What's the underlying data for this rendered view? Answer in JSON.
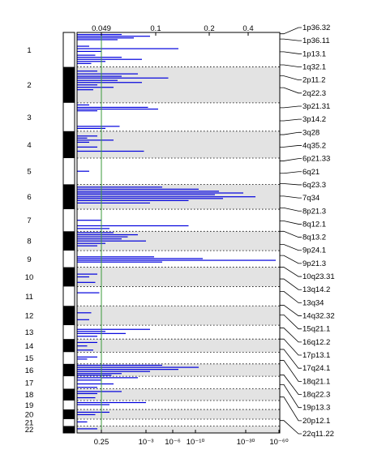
{
  "chart_data": {
    "type": "bar",
    "orientation": "horizontal",
    "chromosomes": [
      "1",
      "2",
      "3",
      "4",
      "5",
      "6",
      "7",
      "8",
      "9",
      "10",
      "11",
      "12",
      "13",
      "14",
      "15",
      "16",
      "17",
      "18",
      "19",
      "20",
      "21",
      "22"
    ],
    "chromosome_spans": [
      {
        "chr": "1",
        "start": 0.0,
        "end": 5.0
      },
      {
        "chr": "2",
        "start": 5.0,
        "end": 10.2
      },
      {
        "chr": "3",
        "start": 10.2,
        "end": 14.3
      },
      {
        "chr": "4",
        "start": 14.3,
        "end": 18.2
      },
      {
        "chr": "5",
        "start": 18.2,
        "end": 22.0
      },
      {
        "chr": "6",
        "start": 22.0,
        "end": 25.6
      },
      {
        "chr": "7",
        "start": 25.6,
        "end": 28.8
      },
      {
        "chr": "8",
        "start": 28.8,
        "end": 31.6
      },
      {
        "chr": "9",
        "start": 31.6,
        "end": 34.0
      },
      {
        "chr": "10",
        "start": 34.0,
        "end": 36.8
      },
      {
        "chr": "11",
        "start": 36.8,
        "end": 39.6
      },
      {
        "chr": "12",
        "start": 39.6,
        "end": 42.4
      },
      {
        "chr": "13",
        "start": 42.4,
        "end": 44.4
      },
      {
        "chr": "14",
        "start": 44.4,
        "end": 46.3
      },
      {
        "chr": "15",
        "start": 46.3,
        "end": 48.0
      },
      {
        "chr": "16",
        "start": 48.0,
        "end": 49.8
      },
      {
        "chr": "17",
        "start": 49.8,
        "end": 51.6
      },
      {
        "chr": "18",
        "start": 51.6,
        "end": 53.3
      },
      {
        "chr": "19",
        "start": 53.3,
        "end": 54.6
      },
      {
        "chr": "20",
        "start": 54.6,
        "end": 56.0
      },
      {
        "chr": "21",
        "start": 56.0,
        "end": 57.0
      },
      {
        "chr": "22",
        "start": 57.0,
        "end": 58.0
      }
    ],
    "top_axis_ticks": [
      "0.049",
      "0.1",
      "0.2",
      "0.4"
    ],
    "bottom_axis_ticks": [
      "0.25",
      "10⁻³",
      "10⁻⁶",
      "10⁻¹⁰",
      "10⁻³⁰",
      "10⁻⁶⁰"
    ],
    "threshold": 0.25,
    "threshold_color": "#3a9a3a",
    "bar_color": "#0000dd",
    "band_color": "#e3e3e3",
    "region_labels": [
      "1p36.32",
      "1p36.11",
      "1p13.1",
      "1q32.1",
      "2p11.2",
      "2q22.3",
      "3p21.31",
      "3p14.2",
      "3q28",
      "4q35.2",
      "6p21.33",
      "6q21",
      "6q23.3",
      "7q34",
      "8p21.3",
      "8q12.1",
      "8q13.2",
      "9p24.1",
      "9p21.3",
      "10q23.31",
      "13q14.2",
      "13q34",
      "14q32.32",
      "15q21.1",
      "16q12.2",
      "17p13.1",
      "17q24.1",
      "18q21.1",
      "18q22.3",
      "19p13.3",
      "20p12.1",
      "22q11.22"
    ],
    "label_anchors": [
      0.2,
      0.95,
      2.8,
      4.7,
      6.3,
      8.0,
      10.9,
      12.8,
      14.8,
      16.6,
      18.6,
      20.4,
      21.9,
      23.7,
      25.4,
      27.3,
      28.8,
      30.7,
      32.3,
      34.0,
      35.7,
      37.5,
      39.5,
      40.9,
      42.8,
      44.4,
      45.9,
      47.5,
      49.6,
      51.0,
      52.8,
      56.2
    ],
    "peaks": [
      {
        "pos": 0.3,
        "w": 0.22
      },
      {
        "pos": 0.55,
        "w": 0.36
      },
      {
        "pos": 0.8,
        "w": 0.28
      },
      {
        "pos": 1.05,
        "w": 0.2
      },
      {
        "pos": 2.0,
        "w": 0.06
      },
      {
        "pos": 2.35,
        "w": 0.5
      },
      {
        "pos": 2.75,
        "w": 0.12
      },
      {
        "pos": 3.3,
        "w": 0.09
      },
      {
        "pos": 3.6,
        "w": 0.22
      },
      {
        "pos": 3.9,
        "w": 0.32
      },
      {
        "pos": 4.2,
        "w": 0.14
      },
      {
        "pos": 4.5,
        "w": 0.07
      },
      {
        "pos": 5.6,
        "w": 0.1
      },
      {
        "pos": 6.0,
        "w": 0.3
      },
      {
        "pos": 6.35,
        "w": 0.22
      },
      {
        "pos": 6.6,
        "w": 0.45
      },
      {
        "pos": 6.95,
        "w": 0.2
      },
      {
        "pos": 7.25,
        "w": 0.32
      },
      {
        "pos": 7.6,
        "w": 0.1
      },
      {
        "pos": 7.95,
        "w": 0.18
      },
      {
        "pos": 8.3,
        "w": 0.08
      },
      {
        "pos": 10.5,
        "w": 0.06
      },
      {
        "pos": 10.85,
        "w": 0.35
      },
      {
        "pos": 11.1,
        "w": 0.4
      },
      {
        "pos": 11.35,
        "w": 0.1
      },
      {
        "pos": 13.6,
        "w": 0.21
      },
      {
        "pos": 13.9,
        "w": 0.14
      },
      {
        "pos": 15.0,
        "w": 0.1
      },
      {
        "pos": 15.3,
        "w": 0.05
      },
      {
        "pos": 15.6,
        "w": 0.18
      },
      {
        "pos": 15.9,
        "w": 0.06
      },
      {
        "pos": 16.6,
        "w": 0.1
      },
      {
        "pos": 17.2,
        "w": 0.33
      },
      {
        "pos": 20.1,
        "w": 0.06
      },
      {
        "pos": 22.4,
        "w": 0.42
      },
      {
        "pos": 22.7,
        "w": 0.6
      },
      {
        "pos": 23.0,
        "w": 0.7
      },
      {
        "pos": 23.25,
        "w": 0.82
      },
      {
        "pos": 23.5,
        "w": 0.68
      },
      {
        "pos": 23.8,
        "w": 0.88
      },
      {
        "pos": 24.05,
        "w": 0.72
      },
      {
        "pos": 24.35,
        "w": 0.55
      },
      {
        "pos": 24.7,
        "w": 0.36
      },
      {
        "pos": 27.2,
        "w": 0.12
      },
      {
        "pos": 28.0,
        "w": 0.55
      },
      {
        "pos": 28.4,
        "w": 0.16
      },
      {
        "pos": 29.0,
        "w": 0.18
      },
      {
        "pos": 29.3,
        "w": 0.3
      },
      {
        "pos": 29.6,
        "w": 0.25
      },
      {
        "pos": 29.9,
        "w": 0.22
      },
      {
        "pos": 30.2,
        "w": 0.34
      },
      {
        "pos": 30.55,
        "w": 0.14
      },
      {
        "pos": 30.9,
        "w": 0.1
      },
      {
        "pos": 32.5,
        "w": 0.38
      },
      {
        "pos": 32.75,
        "w": 0.62
      },
      {
        "pos": 33.0,
        "w": 0.98
      },
      {
        "pos": 33.25,
        "w": 0.42
      },
      {
        "pos": 35.0,
        "w": 0.1
      },
      {
        "pos": 35.4,
        "w": 0.06
      },
      {
        "pos": 36.2,
        "w": 0.09
      },
      {
        "pos": 37.7,
        "w": 0.11
      },
      {
        "pos": 40.6,
        "w": 0.07
      },
      {
        "pos": 41.6,
        "w": 0.06
      },
      {
        "pos": 43.0,
        "w": 0.36
      },
      {
        "pos": 43.3,
        "w": 0.14
      },
      {
        "pos": 43.6,
        "w": 0.24
      },
      {
        "pos": 44.0,
        "w": 0.1
      },
      {
        "pos": 44.9,
        "w": 0.1
      },
      {
        "pos": 45.4,
        "w": 0.05
      },
      {
        "pos": 46.0,
        "w": 0.08
      },
      {
        "pos": 47.0,
        "w": 0.1
      },
      {
        "pos": 47.3,
        "w": 0.05
      },
      {
        "pos": 48.2,
        "w": 0.42
      },
      {
        "pos": 48.5,
        "w": 0.6
      },
      {
        "pos": 48.8,
        "w": 0.5
      },
      {
        "pos": 49.1,
        "w": 0.36
      },
      {
        "pos": 49.4,
        "w": 0.22
      },
      {
        "pos": 49.65,
        "w": 0.17
      },
      {
        "pos": 50.0,
        "w": 0.3
      },
      {
        "pos": 50.35,
        "w": 0.12
      },
      {
        "pos": 50.9,
        "w": 0.18
      },
      {
        "pos": 51.4,
        "w": 0.1
      },
      {
        "pos": 52.0,
        "w": 0.22
      },
      {
        "pos": 52.3,
        "w": 0.1
      },
      {
        "pos": 52.9,
        "w": 0.09
      },
      {
        "pos": 53.6,
        "w": 0.34
      },
      {
        "pos": 53.9,
        "w": 0.16
      },
      {
        "pos": 55.0,
        "w": 0.16
      },
      {
        "pos": 55.35,
        "w": 0.09
      },
      {
        "pos": 56.4,
        "w": 0.05
      },
      {
        "pos": 57.4,
        "w": 0.1
      }
    ],
    "grid": "dotted",
    "legend": "none"
  }
}
